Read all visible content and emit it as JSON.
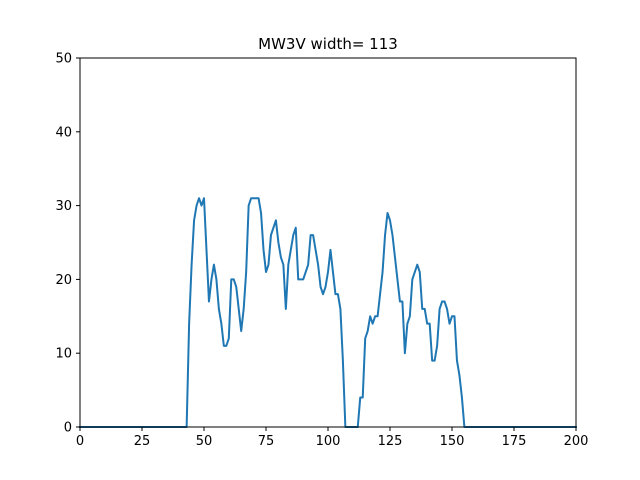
{
  "chart_data": {
    "type": "line",
    "title": "MW3V width= 113",
    "xlabel": "",
    "ylabel": "",
    "xlim": [
      0,
      200
    ],
    "ylim": [
      0,
      50
    ],
    "xticks": [
      0,
      25,
      50,
      75,
      100,
      125,
      150,
      175,
      200
    ],
    "yticks": [
      0,
      10,
      20,
      30,
      40,
      50
    ],
    "grid": false,
    "series": [
      {
        "color": "#1f77b4",
        "x": [
          0,
          43,
          44,
          45,
          46,
          47,
          48,
          49,
          50,
          51,
          52,
          53,
          54,
          55,
          56,
          57,
          58,
          59,
          60,
          61,
          62,
          63,
          64,
          65,
          66,
          67,
          68,
          69,
          70,
          71,
          72,
          73,
          74,
          75,
          76,
          77,
          78,
          79,
          80,
          81,
          82,
          83,
          84,
          85,
          86,
          87,
          88,
          89,
          90,
          91,
          92,
          93,
          94,
          95,
          96,
          97,
          98,
          99,
          100,
          101,
          102,
          103,
          104,
          105,
          106,
          107,
          108,
          109,
          110,
          111,
          112,
          113,
          114,
          115,
          116,
          117,
          118,
          119,
          120,
          121,
          122,
          123,
          124,
          125,
          126,
          127,
          128,
          129,
          130,
          131,
          132,
          133,
          134,
          135,
          136,
          137,
          138,
          139,
          140,
          141,
          142,
          143,
          144,
          145,
          146,
          147,
          148,
          149,
          150,
          151,
          152,
          153,
          154,
          155,
          156,
          157,
          200
        ],
        "y": [
          0,
          0,
          14,
          22,
          28,
          30,
          31,
          30,
          31,
          24,
          17,
          20,
          22,
          20,
          16,
          14,
          11,
          11,
          12,
          20,
          20,
          19,
          16,
          13,
          16,
          21,
          30,
          31,
          31,
          31,
          31,
          29,
          24,
          21,
          22,
          26,
          27,
          28,
          25,
          23,
          22,
          16,
          22,
          24,
          26,
          27,
          20,
          20,
          20,
          21,
          22,
          26,
          26,
          24,
          22,
          19,
          18,
          19,
          21,
          24,
          21,
          18,
          18,
          16,
          9,
          0,
          0,
          0,
          0,
          0,
          0,
          4,
          4,
          12,
          13,
          15,
          14,
          15,
          15,
          18,
          21,
          26,
          29,
          28,
          26,
          23,
          20,
          17,
          17,
          10,
          14,
          15,
          20,
          21,
          22,
          21,
          16,
          16,
          14,
          14,
          9,
          9,
          11,
          16,
          17,
          17,
          16,
          14,
          15,
          15,
          9,
          7,
          4,
          0,
          0,
          0,
          0
        ]
      }
    ]
  }
}
